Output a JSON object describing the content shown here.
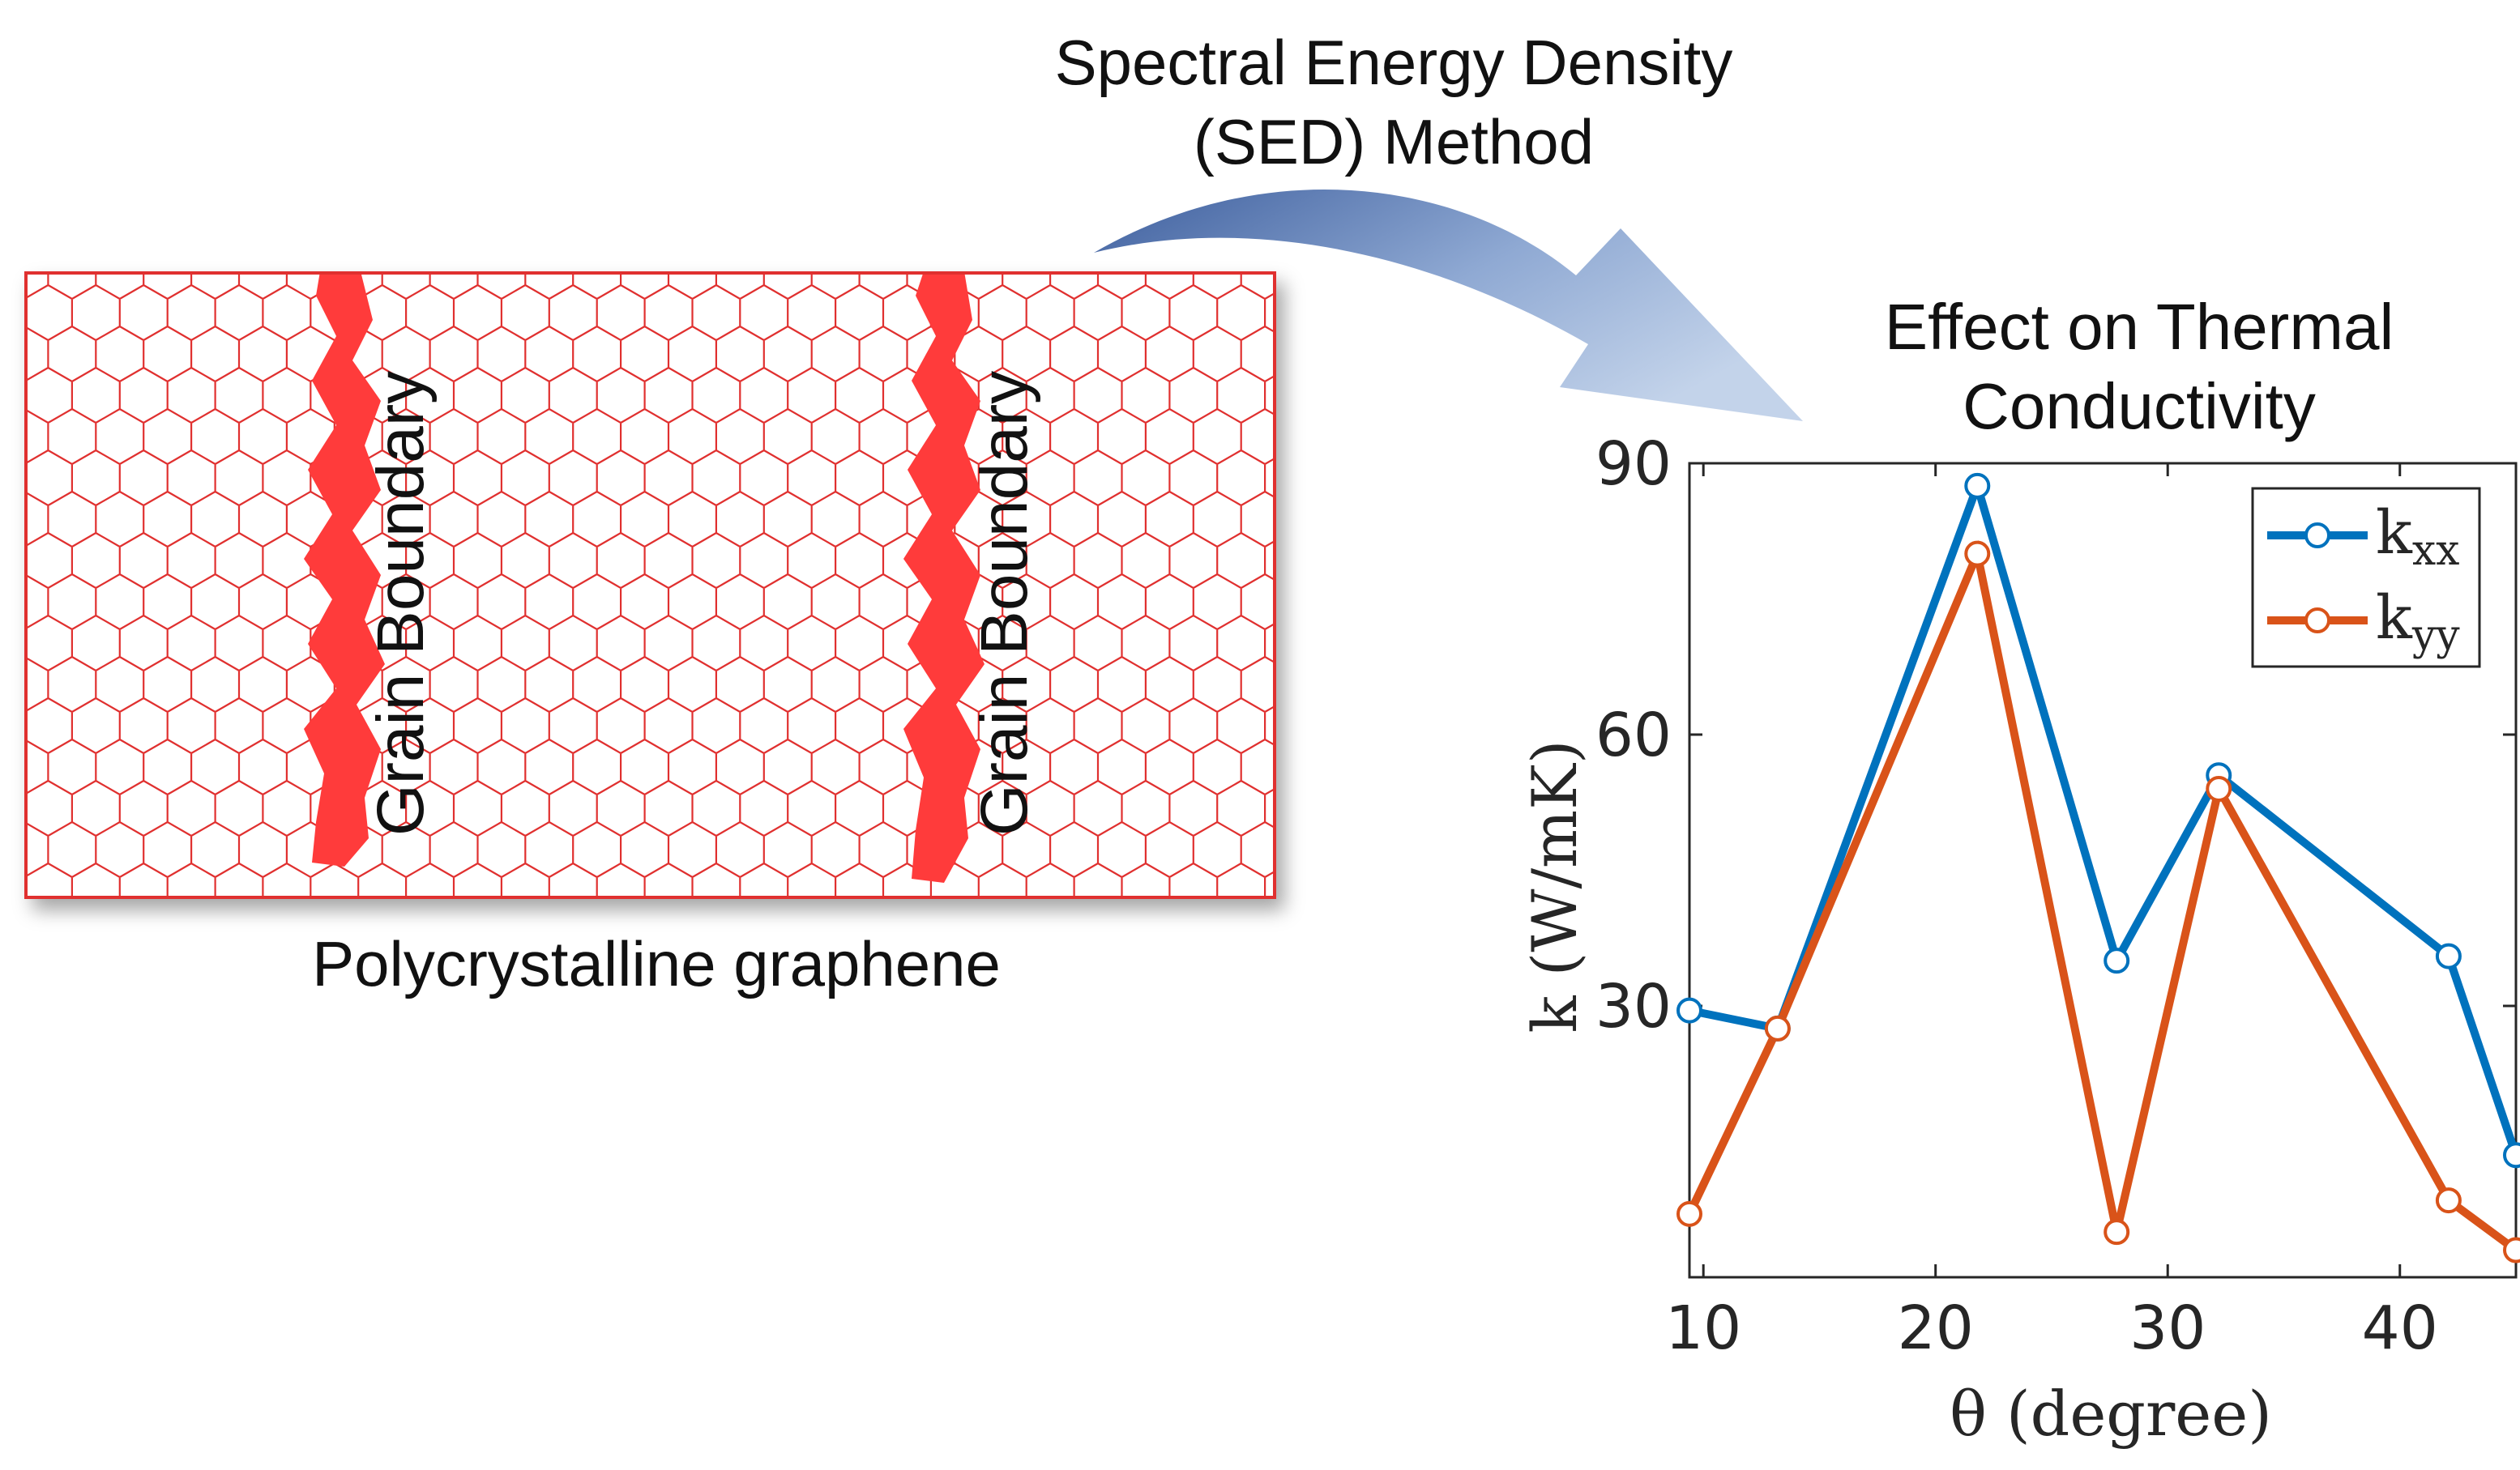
{
  "sed_label": {
    "line1": "Spectral Energy Density",
    "line2": "(SED) Method"
  },
  "graphene": {
    "grain_boundary_1": "Grain Boundary",
    "grain_boundary_2": "Grain Boundary",
    "caption": "Polycrystalline graphene"
  },
  "colors": {
    "hex_lattice": "#e0302f",
    "grain_boundary": "#ff3b3b",
    "arrow_dark": "#3e5f9e",
    "arrow_light": "#b9cbe6",
    "series_kxx": "#0072bd",
    "series_kyy": "#d95319"
  },
  "chart_data": {
    "type": "line",
    "title": "Effect on Thermal Conductivity",
    "title_line1": "Effect on Thermal",
    "title_line2": "Conductivity",
    "xlabel": "θ (degree)",
    "ylabel": "k (W/mK)",
    "xlim": [
      9.4,
      45
    ],
    "ylim": [
      0,
      90
    ],
    "xticks": [
      10,
      20,
      30,
      40
    ],
    "yticks": [
      30,
      60,
      90
    ],
    "x": [
      9.4,
      13.2,
      21.8,
      27.8,
      32.2,
      42.1,
      45.0
    ],
    "series": [
      {
        "name": "k_xx",
        "label_main": "k",
        "label_sub": "xx",
        "color": "#0072bd",
        "values": [
          29.5,
          27.5,
          87.5,
          35.0,
          55.5,
          35.5,
          13.5
        ]
      },
      {
        "name": "k_yy",
        "label_main": "k",
        "label_sub": "yy",
        "color": "#d95319",
        "values": [
          7.0,
          27.5,
          80.0,
          5.0,
          54.0,
          8.5,
          3.0
        ]
      }
    ],
    "legend": "top-right"
  }
}
